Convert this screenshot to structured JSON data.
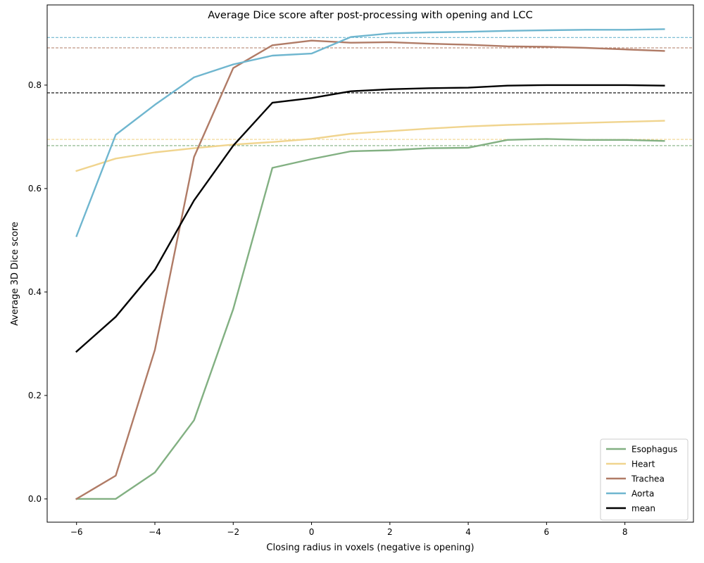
{
  "chart_data": {
    "type": "line",
    "title": "Average Dice score after post-processing with opening and LCC",
    "xlabel": "Closing radius in voxels (negative is opening)",
    "ylabel": "Average 3D Dice score",
    "xlim": [
      -6.75,
      9.75
    ],
    "ylim": [
      -0.045,
      0.955
    ],
    "xticks": [
      -6,
      -4,
      -2,
      0,
      2,
      4,
      6,
      8
    ],
    "xtick_labels": [
      "−6",
      "−4",
      "−2",
      "0",
      "2",
      "4",
      "6",
      "8"
    ],
    "yticks": [
      0.0,
      0.2,
      0.4,
      0.6,
      0.8
    ],
    "ytick_labels": [
      "0.0",
      "0.2",
      "0.4",
      "0.6",
      "0.8"
    ],
    "grid": false,
    "legend_position": "lower-right",
    "x": [
      -6,
      -5,
      -4,
      -3,
      -2,
      -1,
      0,
      1,
      2,
      3,
      4,
      5,
      6,
      7,
      8,
      9
    ],
    "series": [
      {
        "name": "Esophagus",
        "color": "#82b082",
        "values": [
          0.0,
          0.0,
          0.051,
          0.152,
          0.367,
          0.64,
          0.657,
          0.672,
          0.674,
          0.678,
          0.679,
          0.694,
          0.696,
          0.694,
          0.694,
          0.692
        ],
        "reference": 0.683
      },
      {
        "name": "Heart",
        "color": "#f0d48e",
        "values": [
          0.634,
          0.658,
          0.67,
          0.678,
          0.685,
          0.69,
          0.696,
          0.706,
          0.711,
          0.716,
          0.72,
          0.723,
          0.725,
          0.727,
          0.729,
          0.731
        ],
        "reference": 0.695
      },
      {
        "name": "Trachea",
        "color": "#b07b66",
        "values": [
          0.0,
          0.045,
          0.288,
          0.661,
          0.833,
          0.877,
          0.886,
          0.882,
          0.883,
          0.88,
          0.878,
          0.875,
          0.874,
          0.872,
          0.869,
          0.866
        ],
        "reference": 0.872
      },
      {
        "name": "Aorta",
        "color": "#6fb6cf",
        "values": [
          0.508,
          0.704,
          0.762,
          0.815,
          0.84,
          0.857,
          0.861,
          0.893,
          0.9,
          0.902,
          0.903,
          0.905,
          0.906,
          0.907,
          0.907,
          0.908
        ],
        "reference": 0.892
      },
      {
        "name": "mean",
        "color": "#000000",
        "values": [
          0.285,
          0.352,
          0.443,
          0.577,
          0.683,
          0.766,
          0.775,
          0.788,
          0.792,
          0.794,
          0.795,
          0.799,
          0.8,
          0.8,
          0.8,
          0.799
        ],
        "reference": 0.785
      }
    ]
  }
}
